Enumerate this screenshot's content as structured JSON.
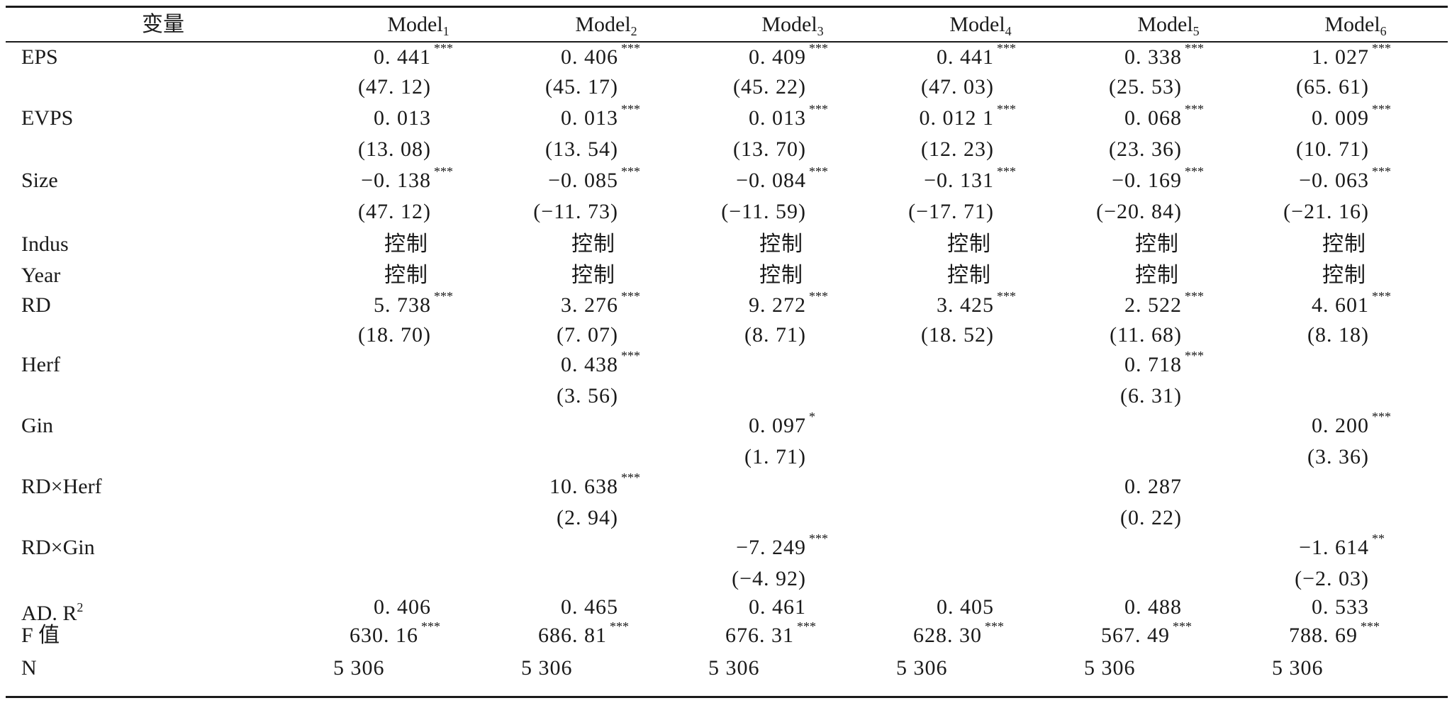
{
  "table": {
    "header": {
      "variable": "变量",
      "models": [
        {
          "name": "Model",
          "sub": "1"
        },
        {
          "name": "Model",
          "sub": "2"
        },
        {
          "name": "Model",
          "sub": "3"
        },
        {
          "name": "Model",
          "sub": "4"
        },
        {
          "name": "Model",
          "sub": "5"
        },
        {
          "name": "Model",
          "sub": "6"
        }
      ]
    },
    "rows": [
      {
        "label": "EPS",
        "values": [
          {
            "v": "0. 441",
            "s": "***"
          },
          {
            "v": "0. 406",
            "s": "***"
          },
          {
            "v": "0. 409",
            "s": "***"
          },
          {
            "v": "0. 441",
            "s": "***"
          },
          {
            "v": "0. 338",
            "s": "***"
          },
          {
            "v": "1. 027",
            "s": "***"
          }
        ]
      },
      {
        "label": "",
        "values": [
          {
            "v": "(47. 12)"
          },
          {
            "v": "(45. 17)"
          },
          {
            "v": "(45. 22)"
          },
          {
            "v": "(47. 03)"
          },
          {
            "v": "(25. 53)"
          },
          {
            "v": "(65. 61)"
          }
        ]
      },
      {
        "label": "EVPS",
        "values": [
          {
            "v": "0. 013"
          },
          {
            "v": "0. 013",
            "s": "***"
          },
          {
            "v": "0. 013",
            "s": "***"
          },
          {
            "v": "0. 012 1",
            "s": "***"
          },
          {
            "v": "0. 068",
            "s": "***"
          },
          {
            "v": "0. 009",
            "s": "***"
          }
        ]
      },
      {
        "label": "",
        "values": [
          {
            "v": "(13. 08)"
          },
          {
            "v": "(13. 54)"
          },
          {
            "v": "(13. 70)"
          },
          {
            "v": "(12. 23)"
          },
          {
            "v": "(23. 36)"
          },
          {
            "v": "(10. 71)"
          }
        ]
      },
      {
        "label": "Size",
        "values": [
          {
            "v": "−0. 138",
            "s": "***"
          },
          {
            "v": "−0. 085",
            "s": "***"
          },
          {
            "v": "−0. 084",
            "s": "***"
          },
          {
            "v": "−0. 131",
            "s": "***"
          },
          {
            "v": "−0. 169",
            "s": "***"
          },
          {
            "v": "−0. 063",
            "s": "***"
          }
        ]
      },
      {
        "label": "",
        "values": [
          {
            "v": "(47. 12)"
          },
          {
            "v": "(−11. 73)"
          },
          {
            "v": "(−11. 59)"
          },
          {
            "v": "(−17. 71)"
          },
          {
            "v": "(−20. 84)"
          },
          {
            "v": "(−21. 16)"
          }
        ]
      },
      {
        "label": "Indus",
        "values": [
          {
            "v": "控制"
          },
          {
            "v": "控制"
          },
          {
            "v": "控制"
          },
          {
            "v": "控制"
          },
          {
            "v": "控制"
          },
          {
            "v": "控制"
          }
        ]
      },
      {
        "label": "Year",
        "values": [
          {
            "v": "控制"
          },
          {
            "v": "控制"
          },
          {
            "v": "控制"
          },
          {
            "v": "控制"
          },
          {
            "v": "控制"
          },
          {
            "v": "控制"
          }
        ]
      },
      {
        "label": "RD",
        "values": [
          {
            "v": "5. 738",
            "s": "***"
          },
          {
            "v": "3. 276",
            "s": "***"
          },
          {
            "v": "9. 272",
            "s": "***"
          },
          {
            "v": "3. 425",
            "s": "***"
          },
          {
            "v": "2. 522",
            "s": "***"
          },
          {
            "v": "4. 601",
            "s": "***"
          }
        ]
      },
      {
        "label": "",
        "values": [
          {
            "v": "(18. 70)"
          },
          {
            "v": "(7. 07)"
          },
          {
            "v": "(8. 71)"
          },
          {
            "v": "(18. 52)"
          },
          {
            "v": "(11. 68)"
          },
          {
            "v": "(8. 18)"
          }
        ]
      },
      {
        "label": "Herf",
        "values": [
          {
            "v": ""
          },
          {
            "v": "0. 438",
            "s": "***"
          },
          {
            "v": ""
          },
          {
            "v": ""
          },
          {
            "v": "0. 718",
            "s": "***"
          },
          {
            "v": ""
          }
        ]
      },
      {
        "label": "",
        "values": [
          {
            "v": ""
          },
          {
            "v": "(3. 56)"
          },
          {
            "v": ""
          },
          {
            "v": ""
          },
          {
            "v": "(6. 31)"
          },
          {
            "v": ""
          }
        ]
      },
      {
        "label": "Gin",
        "values": [
          {
            "v": ""
          },
          {
            "v": ""
          },
          {
            "v": "0. 097",
            "s": "*"
          },
          {
            "v": ""
          },
          {
            "v": ""
          },
          {
            "v": "0. 200",
            "s": "***"
          }
        ]
      },
      {
        "label": "",
        "values": [
          {
            "v": ""
          },
          {
            "v": ""
          },
          {
            "v": "(1. 71)"
          },
          {
            "v": ""
          },
          {
            "v": ""
          },
          {
            "v": "(3. 36)"
          }
        ]
      },
      {
        "label": "RD×Herf",
        "values": [
          {
            "v": ""
          },
          {
            "v": "10. 638",
            "s": "***"
          },
          {
            "v": ""
          },
          {
            "v": ""
          },
          {
            "v": "0. 287"
          },
          {
            "v": ""
          }
        ]
      },
      {
        "label": "",
        "values": [
          {
            "v": ""
          },
          {
            "v": "(2. 94)"
          },
          {
            "v": ""
          },
          {
            "v": ""
          },
          {
            "v": "(0. 22)"
          },
          {
            "v": ""
          }
        ]
      },
      {
        "label": "RD×Gin",
        "values": [
          {
            "v": ""
          },
          {
            "v": ""
          },
          {
            "v": "−7. 249",
            "s": "***"
          },
          {
            "v": ""
          },
          {
            "v": ""
          },
          {
            "v": "−1. 614",
            "s": "**"
          }
        ]
      },
      {
        "label": "",
        "values": [
          {
            "v": ""
          },
          {
            "v": ""
          },
          {
            "v": "(−4. 92)"
          },
          {
            "v": ""
          },
          {
            "v": ""
          },
          {
            "v": "(−2. 03)"
          }
        ]
      },
      {
        "label": "AD. R",
        "label_sup": "2",
        "values": [
          {
            "v": "0. 406"
          },
          {
            "v": "0. 465"
          },
          {
            "v": "0. 461"
          },
          {
            "v": "0. 405"
          },
          {
            "v": "0. 488"
          },
          {
            "v": "0. 533"
          }
        ]
      },
      {
        "label": "F 值",
        "values": [
          {
            "v": "630. 16",
            "s": "***"
          },
          {
            "v": "686. 81",
            "s": "***"
          },
          {
            "v": "676. 31",
            "s": "***"
          },
          {
            "v": "628. 30",
            "s": "***"
          },
          {
            "v": "567. 49",
            "s": "***"
          },
          {
            "v": "788. 69",
            "s": "***"
          }
        ]
      },
      {
        "label": "N",
        "values": [
          {
            "v": "5 306"
          },
          {
            "v": "5 306"
          },
          {
            "v": "5 306"
          },
          {
            "v": "5 306"
          },
          {
            "v": "5 306"
          },
          {
            "v": "5 306"
          }
        ]
      }
    ]
  }
}
